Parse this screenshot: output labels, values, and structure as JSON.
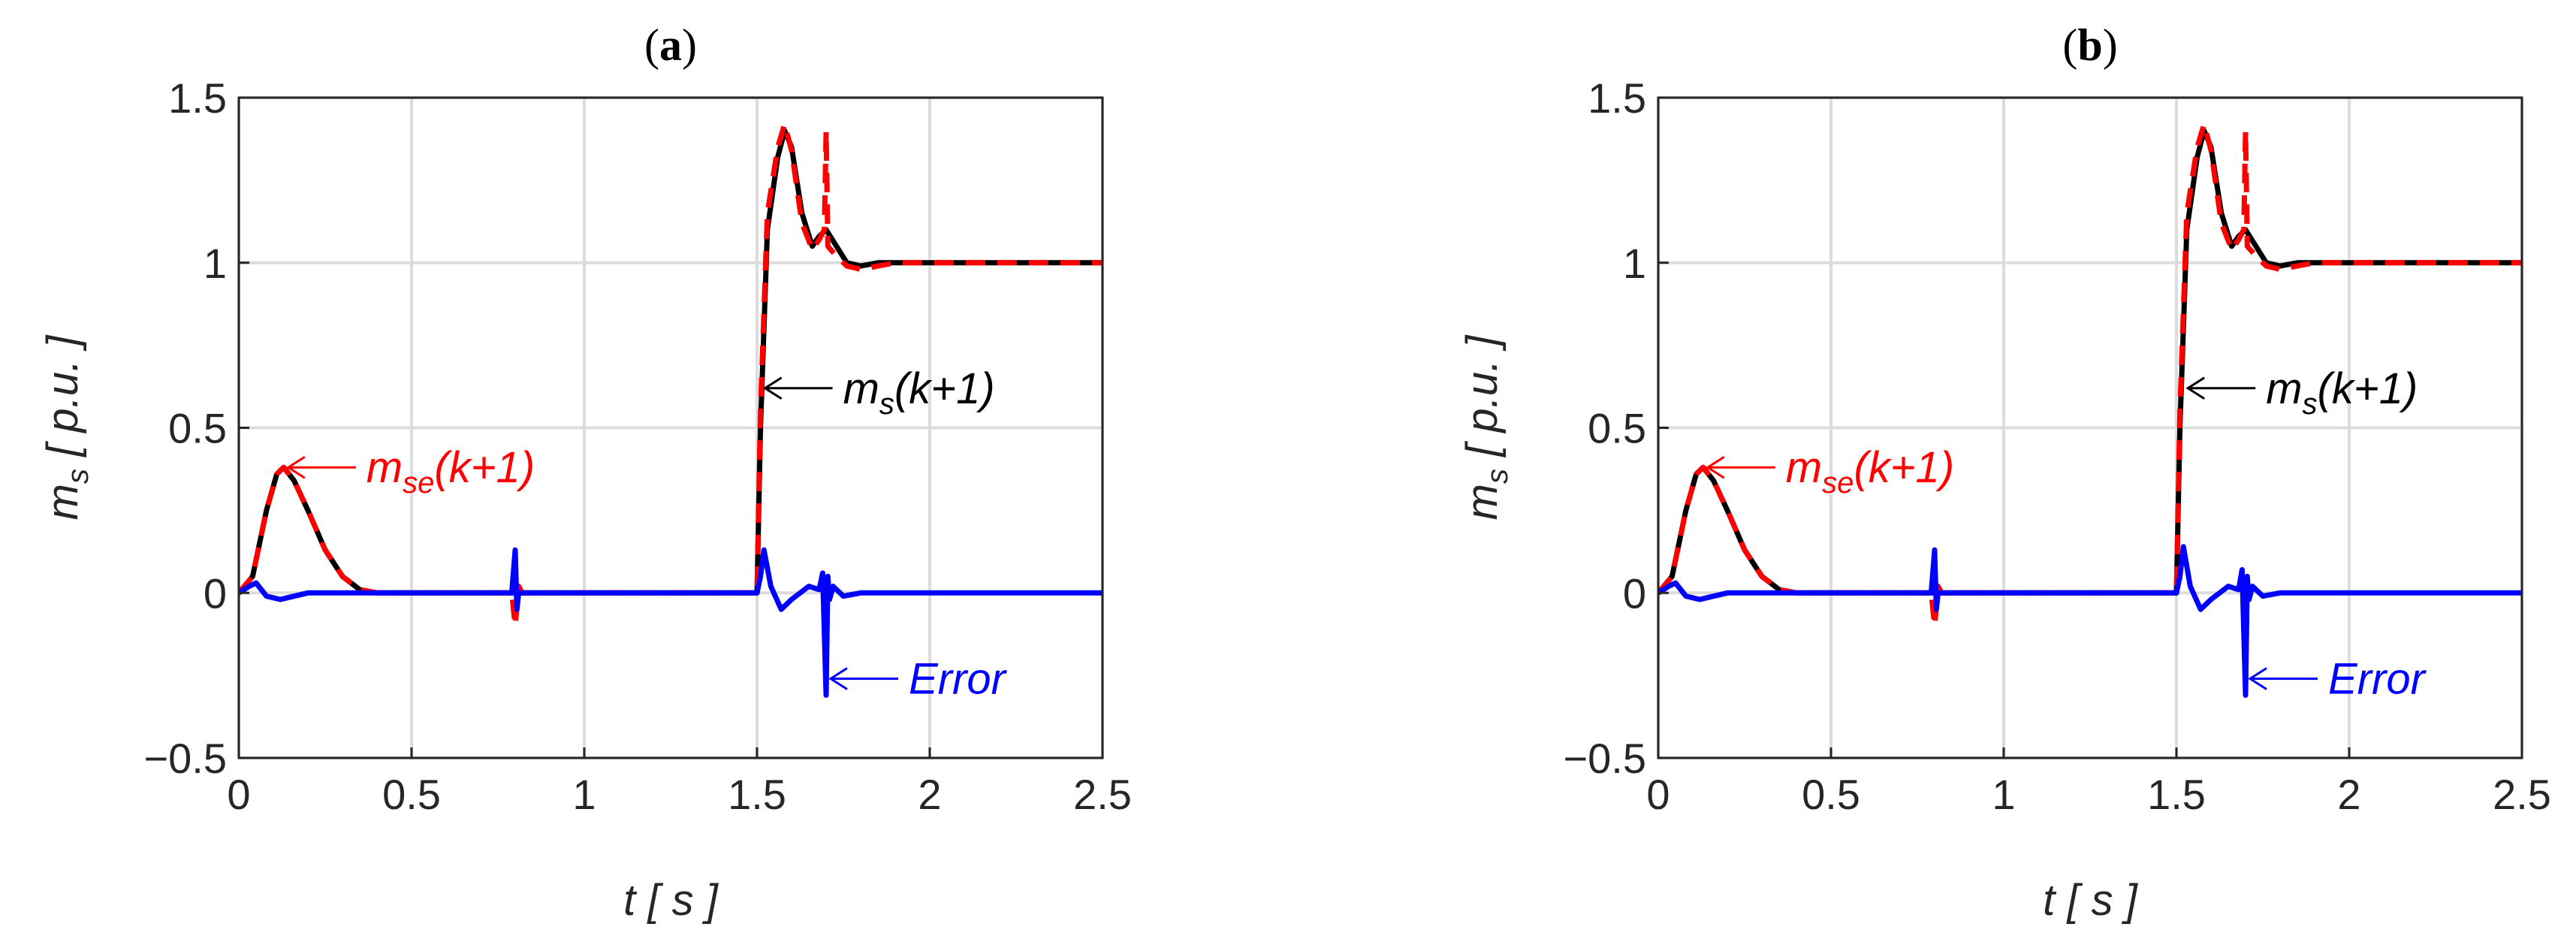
{
  "chart_data": [
    {
      "type": "line",
      "panel_label": "a",
      "xlabel": "t [ s ]",
      "ylabel_main": "m",
      "ylabel_sub": "s",
      "ylabel_rest": " [ p.u. ]",
      "xlim": [
        0,
        2.5
      ],
      "ylim": [
        -0.5,
        1.5
      ],
      "xticks": [
        0,
        0.5,
        1,
        1.5,
        2,
        2.5
      ],
      "xtick_labels": [
        "0",
        "0.5",
        "1",
        "1.5",
        "2",
        "2.5"
      ],
      "yticks": [
        -0.5,
        0,
        0.5,
        1,
        1.5
      ],
      "ytick_labels": [
        "−0.5",
        "0",
        "0.5",
        "1",
        "1.5"
      ],
      "grid": true,
      "series": [
        {
          "color": "#000000",
          "style": "solid",
          "x": [
            0,
            0.04,
            0.08,
            0.11,
            0.13,
            0.16,
            0.2,
            0.25,
            0.3,
            0.35,
            0.4,
            0.5,
            1.0,
            1.5,
            1.51,
            1.53,
            1.56,
            1.58,
            1.6,
            1.63,
            1.66,
            1.68,
            1.7,
            1.73,
            1.76,
            1.8,
            1.85,
            1.9,
            2.0,
            2.5
          ],
          "y": [
            0,
            0.05,
            0.25,
            0.36,
            0.38,
            0.34,
            0.25,
            0.13,
            0.05,
            0.01,
            0,
            0,
            0,
            0,
            0.5,
            1.1,
            1.32,
            1.4,
            1.35,
            1.15,
            1.05,
            1.08,
            1.1,
            1.05,
            1.0,
            0.99,
            1.0,
            1.0,
            1.0,
            1.0
          ]
        },
        {
          "color": "#ff0000",
          "style": "dashed",
          "x": [
            0,
            0.04,
            0.08,
            0.11,
            0.13,
            0.16,
            0.2,
            0.25,
            0.3,
            0.35,
            0.4,
            0.79,
            0.8,
            0.81,
            0.82,
            1.5,
            1.51,
            1.53,
            1.56,
            1.58,
            1.6,
            1.63,
            1.66,
            1.68,
            1.695,
            1.7,
            1.705,
            1.73,
            1.76,
            1.8,
            1.85,
            1.9,
            2.0,
            2.5
          ],
          "y": [
            0,
            0.05,
            0.25,
            0.36,
            0.38,
            0.34,
            0.25,
            0.13,
            0.05,
            0.01,
            0,
            0,
            -0.1,
            0.02,
            0,
            0,
            0.55,
            1.15,
            1.35,
            1.42,
            1.34,
            1.12,
            1.04,
            1.07,
            1.1,
            1.4,
            1.05,
            1.02,
            0.99,
            0.98,
            0.99,
            1.0,
            1.0,
            1.0
          ]
        },
        {
          "color": "#0000ff",
          "style": "solid",
          "x": [
            0,
            0.03,
            0.05,
            0.08,
            0.12,
            0.2,
            0.3,
            0.79,
            0.8,
            0.805,
            0.81,
            1.5,
            1.51,
            1.52,
            1.54,
            1.57,
            1.6,
            1.65,
            1.68,
            1.69,
            1.7,
            1.705,
            1.71,
            1.72,
            1.75,
            1.8,
            2.5
          ],
          "y": [
            0,
            0.02,
            0.03,
            -0.01,
            -0.02,
            0,
            0,
            0,
            0.13,
            -0.05,
            0,
            0,
            0.05,
            0.13,
            0.02,
            -0.05,
            -0.02,
            0.02,
            0.01,
            0.06,
            -0.31,
            0.05,
            -0.02,
            0.02,
            -0.01,
            0,
            0
          ]
        }
      ],
      "annotations": [
        {
          "main": "m",
          "sub": "se",
          "rest": "(k+1)",
          "color": "#ff0000",
          "arrow_to": [
            0.13,
            0.38
          ]
        },
        {
          "main": "m",
          "sub": "s",
          "rest": "(k+1)",
          "color": "#000000",
          "arrow_to": [
            1.51,
            0.62
          ]
        },
        {
          "main": "Error",
          "sub": "",
          "rest": "",
          "color": "#0000ff",
          "arrow_to": [
            1.7,
            -0.26
          ]
        }
      ]
    },
    {
      "type": "line",
      "panel_label": "b",
      "xlabel": "t [ s ]",
      "ylabel_main": "m",
      "ylabel_sub": "s",
      "ylabel_rest": " [ p.u. ]",
      "xlim": [
        0,
        2.5
      ],
      "ylim": [
        -0.5,
        1.5
      ],
      "xticks": [
        0,
        0.5,
        1,
        1.5,
        2,
        2.5
      ],
      "xtick_labels": [
        "0",
        "0.5",
        "1",
        "1.5",
        "2",
        "2.5"
      ],
      "yticks": [
        -0.5,
        0,
        0.5,
        1,
        1.5
      ],
      "ytick_labels": [
        "−0.5",
        "0",
        "0.5",
        "1",
        "1.5"
      ],
      "grid": true,
      "series": [
        {
          "color": "#000000",
          "style": "solid",
          "x": [
            0,
            0.04,
            0.08,
            0.11,
            0.13,
            0.16,
            0.2,
            0.25,
            0.3,
            0.35,
            0.4,
            0.5,
            1.0,
            1.5,
            1.51,
            1.53,
            1.56,
            1.58,
            1.6,
            1.63,
            1.66,
            1.68,
            1.7,
            1.73,
            1.76,
            1.8,
            1.85,
            1.9,
            2.0,
            2.5
          ],
          "y": [
            0,
            0.05,
            0.25,
            0.36,
            0.38,
            0.34,
            0.25,
            0.13,
            0.05,
            0.01,
            0,
            0,
            0,
            0,
            0.5,
            1.1,
            1.32,
            1.4,
            1.35,
            1.15,
            1.05,
            1.08,
            1.1,
            1.05,
            1.0,
            0.99,
            1.0,
            1.0,
            1.0,
            1.0
          ]
        },
        {
          "color": "#ff0000",
          "style": "dashed",
          "x": [
            0,
            0.04,
            0.08,
            0.11,
            0.13,
            0.16,
            0.2,
            0.25,
            0.3,
            0.35,
            0.4,
            0.79,
            0.8,
            0.81,
            0.82,
            1.5,
            1.51,
            1.53,
            1.56,
            1.58,
            1.6,
            1.63,
            1.66,
            1.68,
            1.695,
            1.7,
            1.705,
            1.73,
            1.76,
            1.8,
            1.85,
            1.9,
            2.0,
            2.5
          ],
          "y": [
            0,
            0.05,
            0.25,
            0.36,
            0.38,
            0.34,
            0.25,
            0.13,
            0.05,
            0.01,
            0,
            0,
            -0.1,
            0.02,
            0,
            0,
            0.55,
            1.15,
            1.35,
            1.42,
            1.34,
            1.12,
            1.04,
            1.07,
            1.1,
            1.4,
            1.05,
            1.02,
            0.99,
            0.98,
            0.99,
            1.0,
            1.0,
            1.0
          ]
        },
        {
          "color": "#0000ff",
          "style": "solid",
          "x": [
            0,
            0.03,
            0.05,
            0.08,
            0.12,
            0.2,
            0.3,
            0.79,
            0.8,
            0.805,
            0.81,
            1.5,
            1.51,
            1.52,
            1.54,
            1.57,
            1.6,
            1.65,
            1.68,
            1.69,
            1.7,
            1.705,
            1.71,
            1.72,
            1.75,
            1.8,
            2.5
          ],
          "y": [
            0,
            0.02,
            0.03,
            -0.01,
            -0.02,
            0,
            0,
            0,
            0.13,
            -0.05,
            0,
            0,
            0.05,
            0.14,
            0.02,
            -0.05,
            -0.02,
            0.02,
            0.01,
            0.07,
            -0.31,
            0.05,
            -0.02,
            0.02,
            -0.01,
            0,
            0
          ]
        }
      ],
      "annotations": [
        {
          "main": "m",
          "sub": "se",
          "rest": "(k+1)",
          "color": "#ff0000",
          "arrow_to": [
            0.13,
            0.38
          ]
        },
        {
          "main": "m",
          "sub": "s",
          "rest": "(k+1)",
          "color": "#000000",
          "arrow_to": [
            1.52,
            0.62
          ]
        },
        {
          "main": "Error",
          "sub": "",
          "rest": "",
          "color": "#0000ff",
          "arrow_to": [
            1.7,
            -0.26
          ]
        }
      ]
    }
  ]
}
